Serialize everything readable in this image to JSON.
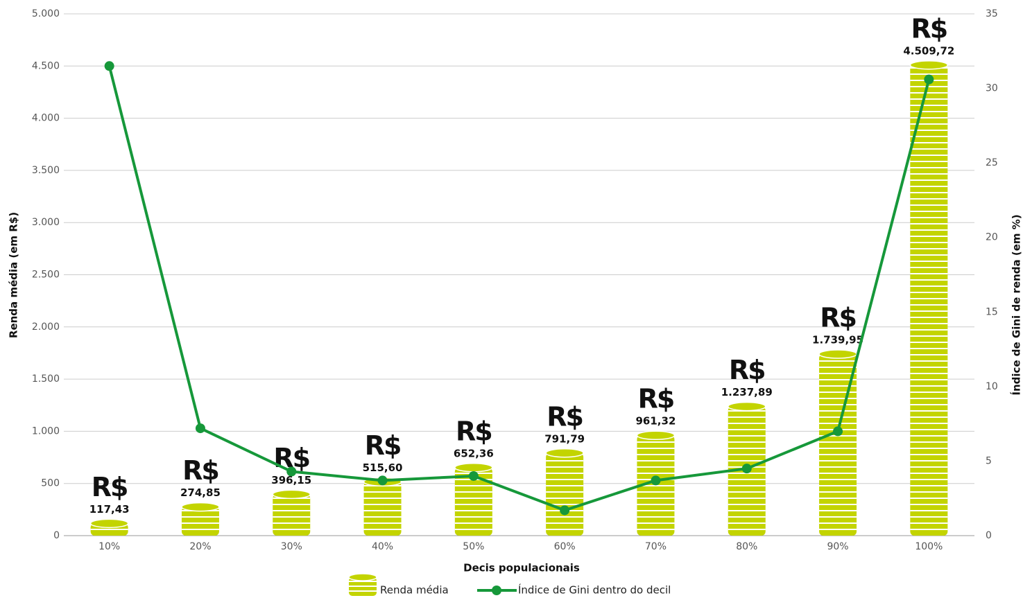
{
  "chart_data": {
    "type": "combo",
    "x_label": "Decis populacionais",
    "y_label": "Renda média (em R$)",
    "y2_label": "Índice de Gini de renda (em %)",
    "currency_symbol": "R$",
    "categories": [
      "10%",
      "20%",
      "30%",
      "40%",
      "50%",
      "60%",
      "70%",
      "80%",
      "90%",
      "100%"
    ],
    "series": [
      {
        "name": "Renda média",
        "type": "bar",
        "color": "#c3d400",
        "values": [
          117.43,
          274.85,
          396.15,
          515.6,
          652.36,
          791.79,
          961.32,
          1237.89,
          1739.95,
          4509.72
        ],
        "value_labels": [
          "117,43",
          "274,85",
          "396,15",
          "515,60",
          "652,36",
          "791,79",
          "961,32",
          "1.237,89",
          "1.739,95",
          "4.509,72"
        ]
      },
      {
        "name": "Índice de Gini dentro do decil",
        "type": "line",
        "axis": "y2",
        "color": "#16983a",
        "values": [
          31.5,
          7.2,
          4.3,
          3.7,
          4.0,
          1.7,
          3.7,
          4.5,
          7.0,
          30.6
        ]
      }
    ],
    "ylim": [
      0,
      5000
    ],
    "yticks": [
      0,
      500,
      {
        "value": 1000,
        "label": "1.000"
      },
      {
        "value": 1500,
        "label": "1.500"
      },
      {
        "value": 2000,
        "label": "2.000"
      },
      {
        "value": 2500,
        "label": "2.500"
      },
      {
        "value": 3000,
        "label": "3.000"
      },
      {
        "value": 3500,
        "label": "3.500"
      },
      {
        "value": 4000,
        "label": "4.000"
      },
      {
        "value": 4500,
        "label": "4.500"
      },
      {
        "value": 5000,
        "label": "5.000"
      }
    ],
    "y2lim": [
      0,
      35
    ],
    "y2ticks": [
      0,
      5,
      10,
      15,
      20,
      25,
      30,
      35
    ],
    "grid": true
  }
}
